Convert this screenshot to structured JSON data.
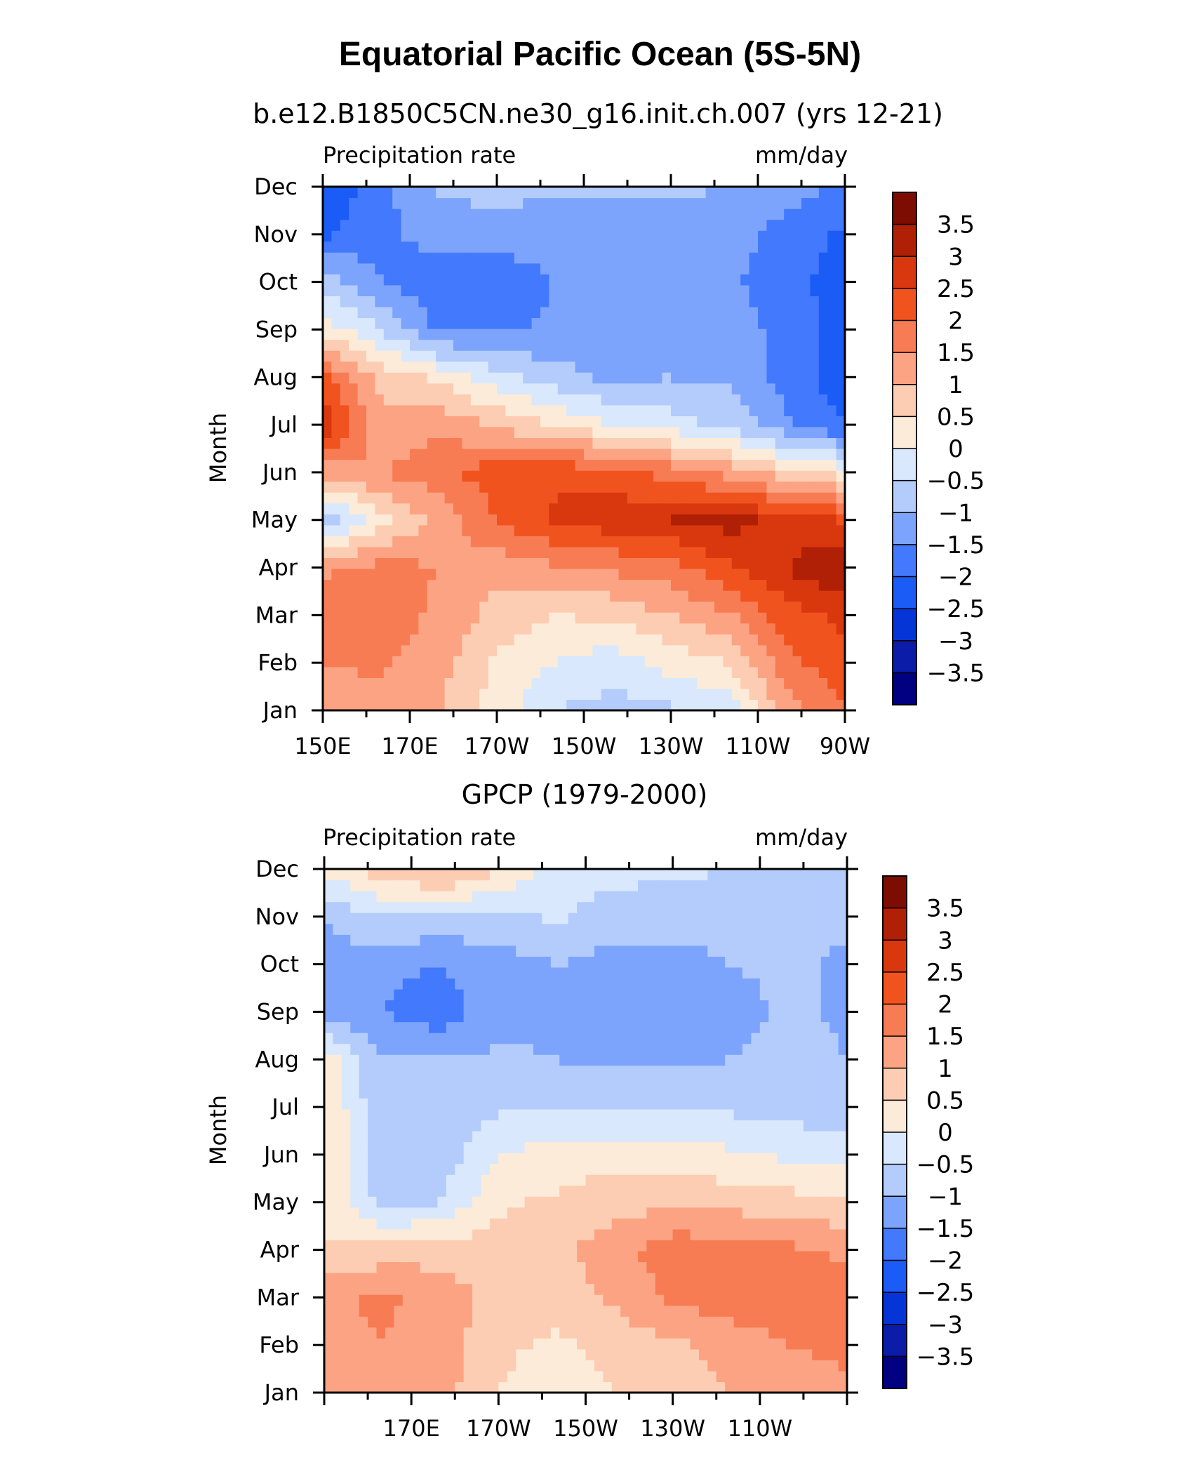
{
  "figure": {
    "title": "Equatorial Pacific Ocean (5S-5N)",
    "colors": [
      "#000080",
      "#0a1ca8",
      "#0535d6",
      "#1a5cf5",
      "#4379fc",
      "#7da4fc",
      "#b3ccfc",
      "#d9e8fc",
      "#fcebd8",
      "#fccdb2",
      "#fba383",
      "#f77c53",
      "#f1531f",
      "#d9380e",
      "#b02006",
      "#7d0c03"
    ],
    "levels": [
      -3.5,
      -3,
      -2.5,
      -2,
      -1.5,
      -1,
      -0.5,
      0,
      0.5,
      1,
      1.5,
      2,
      2.5,
      3,
      3.5
    ]
  },
  "chart_data": [
    {
      "type": "heatmap",
      "title": "b.e12.B1850C5CN.ne30_g16.init.ch.007 (yrs 12-21)",
      "left_label": "Precipitation rate",
      "right_label": "mm/day",
      "ylabel": "Month",
      "xlabel": "",
      "x_tick_labels": [
        "150E",
        "170E",
        "170W",
        "150W",
        "130W",
        "110W",
        "90W"
      ],
      "x_tick_values": [
        150,
        170,
        190,
        210,
        230,
        250,
        270
      ],
      "y_tick_labels": [
        "Jan",
        "Feb",
        "Mar",
        "Apr",
        "May",
        "Jun",
        "Jul",
        "Aug",
        "Sep",
        "Oct",
        "Nov",
        "Dec"
      ],
      "colorbar_labels": [
        "3.5",
        "3",
        "2.5",
        "2",
        "1.5",
        "1",
        "0.5",
        "0",
        "-0.5",
        "-1",
        "-1.5",
        "-2",
        "-2.5",
        "-3",
        "-3.5"
      ],
      "xlim": [
        150,
        270
      ],
      "ylim": [
        "Jan",
        "Dec"
      ],
      "z": [
        [
          1.2,
          1.3,
          1.0,
          0.3,
          -0.5,
          -0.7,
          -0.6,
          -0.3,
          1.3,
          2.0
        ],
        [
          1.5,
          1.6,
          1.2,
          0.4,
          0.0,
          -0.3,
          0.2,
          0.5,
          1.8,
          2.4
        ],
        [
          1.7,
          1.8,
          1.4,
          0.8,
          0.5,
          0.6,
          1.0,
          1.4,
          2.3,
          2.6
        ],
        [
          1.4,
          1.7,
          1.5,
          1.2,
          1.4,
          1.6,
          1.8,
          2.4,
          3.0,
          3.6
        ],
        [
          -1.0,
          0.3,
          1.2,
          2.0,
          2.6,
          2.8,
          3.0,
          3.2,
          2.8,
          2.5
        ],
        [
          1.2,
          1.5,
          1.8,
          2.3,
          2.4,
          2.2,
          1.8,
          1.3,
          0.7,
          0.3
        ],
        [
          2.9,
          1.2,
          1.4,
          0.9,
          0.5,
          0.0,
          -0.3,
          -0.6,
          -1.4,
          -2.0
        ],
        [
          2.2,
          0.8,
          0.4,
          -0.3,
          -0.8,
          -1.1,
          -1.0,
          -1.1,
          -1.7,
          -2.3
        ],
        [
          0.3,
          -0.5,
          -1.6,
          -1.6,
          -1.4,
          -1.3,
          -1.1,
          -1.2,
          -1.7,
          -2.2
        ],
        [
          -0.7,
          -1.5,
          -1.9,
          -1.8,
          -1.5,
          -1.4,
          -1.3,
          -1.4,
          -1.8,
          -2.3
        ],
        [
          -2.1,
          -1.6,
          -1.3,
          -1.3,
          -1.3,
          -1.3,
          -1.3,
          -1.3,
          -1.7,
          -2.1
        ],
        [
          -2.4,
          -1.7,
          -0.9,
          -0.8,
          -0.9,
          -0.9,
          -0.9,
          -1.0,
          -1.3,
          -1.6
        ]
      ]
    },
    {
      "type": "heatmap",
      "title": "GPCP (1979-2000)",
      "left_label": "Precipitation rate",
      "right_label": "mm/day",
      "ylabel": "Month",
      "xlabel": "",
      "x_tick_labels": [
        "170E",
        "170W",
        "150W",
        "130W",
        "110W"
      ],
      "x_tick_values": [
        170,
        190,
        210,
        230,
        250
      ],
      "y_tick_labels": [
        "Jan",
        "Feb",
        "Mar",
        "Apr",
        "May",
        "Jun",
        "Jul",
        "Aug",
        "Sep",
        "Oct",
        "Nov",
        "Dec"
      ],
      "colorbar_labels": [
        "3.5",
        "3",
        "2.5",
        "2",
        "1.5",
        "1",
        "0.5",
        "0",
        "-0.5",
        "-1",
        "-1.5",
        "-2",
        "-2.5",
        "-3",
        "-3.5"
      ],
      "xlim": [
        150,
        270
      ],
      "ylim": [
        "Jan",
        "Dec"
      ],
      "z": [
        [
          1.1,
          1.3,
          1.2,
          0.5,
          0.2,
          0.5,
          0.7,
          1.0,
          1.3,
          1.4
        ],
        [
          1.3,
          1.5,
          1.3,
          0.6,
          0.4,
          0.7,
          0.9,
          1.2,
          1.5,
          1.6
        ],
        [
          1.4,
          1.6,
          1.3,
          0.8,
          0.7,
          1.1,
          1.6,
          1.8,
          1.9,
          1.8
        ],
        [
          0.5,
          0.7,
          0.8,
          0.7,
          0.9,
          1.3,
          1.8,
          1.8,
          1.6,
          1.4
        ],
        [
          0.5,
          -0.7,
          -0.5,
          0.4,
          0.6,
          0.8,
          0.9,
          0.8,
          0.7,
          0.6
        ],
        [
          0.6,
          -0.9,
          -0.8,
          0.0,
          0.2,
          0.3,
          0.3,
          0.1,
          -0.1,
          -0.2
        ],
        [
          0.6,
          -1.0,
          -1.0,
          -0.6,
          -0.5,
          -0.5,
          -0.6,
          -0.6,
          -0.7,
          -0.9
        ],
        [
          0.3,
          -1.0,
          -1.0,
          -0.9,
          -1.0,
          -1.1,
          -1.1,
          -1.0,
          -0.8,
          -1.0
        ],
        [
          -1.2,
          -1.5,
          -1.8,
          -1.2,
          -1.1,
          -1.4,
          -1.4,
          -1.2,
          -0.9,
          -1.1
        ],
        [
          -1.1,
          -1.4,
          -1.5,
          -1.2,
          -1.0,
          -1.2,
          -1.2,
          -1.0,
          -0.9,
          -1.1
        ],
        [
          -1.0,
          -0.5,
          -0.6,
          -0.7,
          -0.4,
          -0.8,
          -0.8,
          -0.8,
          -0.9,
          -0.9
        ],
        [
          0.2,
          0.8,
          1.2,
          0.6,
          -0.2,
          -0.3,
          -0.4,
          -0.5,
          -0.6,
          -0.6
        ]
      ]
    }
  ]
}
